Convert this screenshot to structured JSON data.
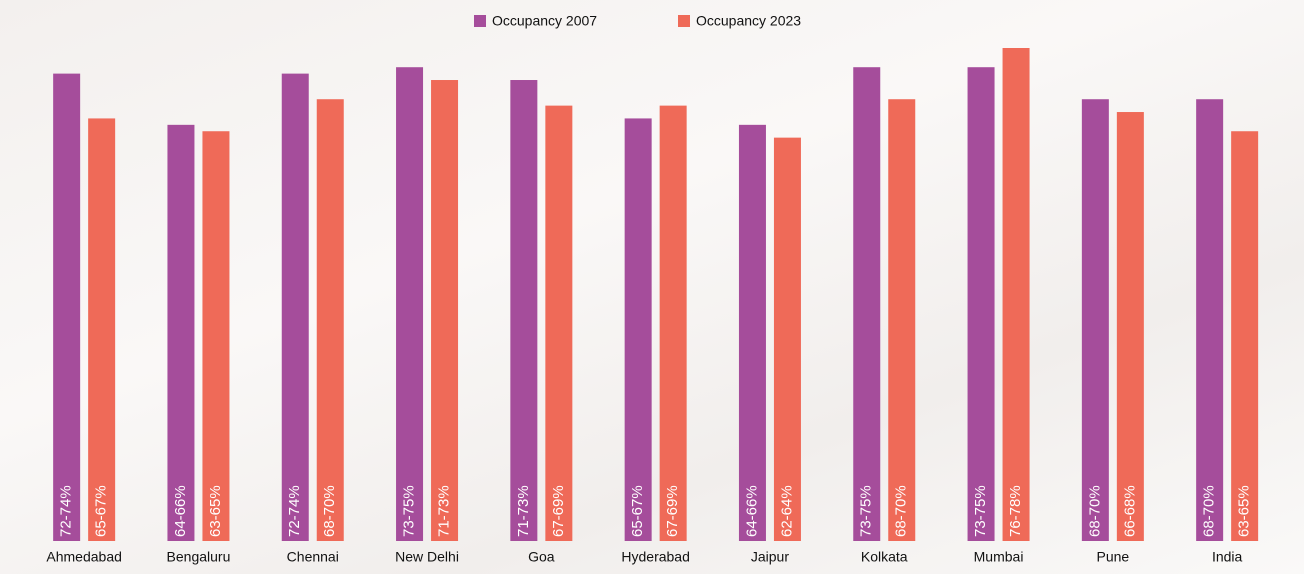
{
  "chart_data": {
    "type": "bar",
    "categories": [
      "Ahmedabad",
      "Bengaluru",
      "Chennai",
      "New Delhi",
      "Goa",
      "Hyderabad",
      "Jaipur",
      "Kolkata",
      "Mumbai",
      "Pune",
      "India"
    ],
    "series": [
      {
        "name": "Occupancy 2007",
        "color": "#a54d9b",
        "values": [
          73,
          65,
          73,
          74,
          72,
          66,
          65,
          74,
          74,
          69,
          69
        ],
        "value_labels": [
          "72-74%",
          "64-66%",
          "72-74%",
          "73-75%",
          "71-73%",
          "65-67%",
          "64-66%",
          "73-75%",
          "73-75%",
          "68-70%",
          "68-70%"
        ]
      },
      {
        "name": "Occupancy 2023",
        "color": "#ef6a58",
        "values": [
          66,
          64,
          69,
          72,
          68,
          68,
          63,
          69,
          77,
          67,
          64
        ],
        "value_labels": [
          "65-67%",
          "63-65%",
          "68-70%",
          "71-73%",
          "67-69%",
          "67-69%",
          "62-64%",
          "68-70%",
          "76-78%",
          "66-68%",
          "63-65%"
        ]
      }
    ],
    "legend": "top"
  }
}
